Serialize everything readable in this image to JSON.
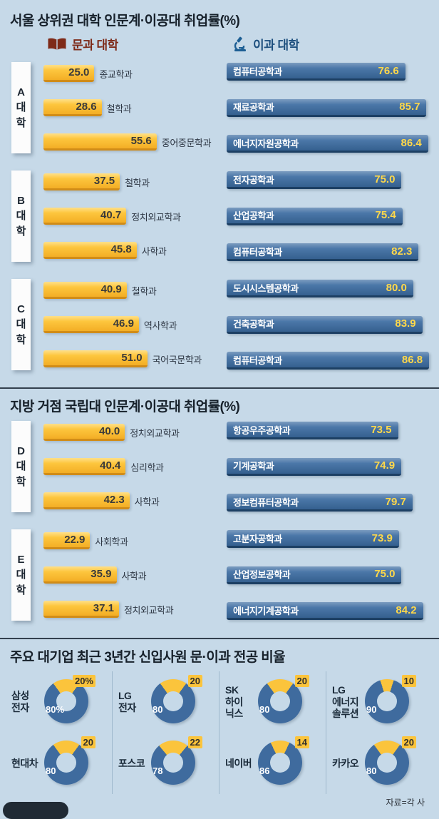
{
  "colors": {
    "background": "#c6d9e8",
    "humanities_yellow": "#fbc43c",
    "humanities_yellow_dark": "#d18c17",
    "engineering_blue": "#3f6b9e",
    "engineering_blue_dark": "#1c3f63",
    "value_on_blue": "#ffd84a",
    "legend_humanities_text": "#7e2a18",
    "legend_engineering_text": "#1d4f7e"
  },
  "chart_data": [
    {
      "type": "bar",
      "title": "서울 상위권 대학 인문계·이공대 취업률(%)",
      "legend": [
        "문과 대학",
        "이과 대학"
      ],
      "humanities_xmax": 90,
      "engineering_xmax": 88,
      "groups": [
        {
          "university": "A 대학",
          "humanities": [
            {
              "dept": "종교학과",
              "value": 25.0
            },
            {
              "dept": "철학과",
              "value": 28.6
            },
            {
              "dept": "중어중문학과",
              "value": 55.6
            }
          ],
          "engineering": [
            {
              "dept": "컴퓨터공학과",
              "value": 76.6
            },
            {
              "dept": "재료공학과",
              "value": 85.7
            },
            {
              "dept": "에너지자원공학과",
              "value": 86.4
            }
          ]
        },
        {
          "university": "B 대학",
          "humanities": [
            {
              "dept": "철학과",
              "value": 37.5
            },
            {
              "dept": "정치외교학과",
              "value": 40.7
            },
            {
              "dept": "사학과",
              "value": 45.8
            }
          ],
          "engineering": [
            {
              "dept": "전자공학과",
              "value": 75.0
            },
            {
              "dept": "산업공학과",
              "value": 75.4
            },
            {
              "dept": "컴퓨터공학과",
              "value": 82.3
            }
          ]
        },
        {
          "university": "C 대학",
          "humanities": [
            {
              "dept": "철학과",
              "value": 40.9
            },
            {
              "dept": "역사학과",
              "value": 46.9
            },
            {
              "dept": "국어국문학과",
              "value": 51.0
            }
          ],
          "engineering": [
            {
              "dept": "도시시스템공학과",
              "value": 80.0
            },
            {
              "dept": "건축공학과",
              "value": 83.9
            },
            {
              "dept": "컴퓨터공학과",
              "value": 86.8
            }
          ]
        }
      ]
    },
    {
      "type": "bar",
      "title": "지방 거점 국립대 인문계·이공대 취업률(%)",
      "humanities_xmax": 90,
      "engineering_xmax": 88,
      "groups": [
        {
          "university": "D 대학",
          "humanities": [
            {
              "dept": "정치외교학과",
              "value": 40.0
            },
            {
              "dept": "심리학과",
              "value": 40.4
            },
            {
              "dept": "사학과",
              "value": 42.3
            }
          ],
          "engineering": [
            {
              "dept": "항공우주공학과",
              "value": 73.5
            },
            {
              "dept": "기계공학과",
              "value": 74.9
            },
            {
              "dept": "정보컴퓨터공학과",
              "value": 79.7
            }
          ]
        },
        {
          "university": "E 대학",
          "humanities": [
            {
              "dept": "사회학과",
              "value": 22.9
            },
            {
              "dept": "사학과",
              "value": 35.9
            },
            {
              "dept": "정치외교학과",
              "value": 37.1
            }
          ],
          "engineering": [
            {
              "dept": "고분자공학과",
              "value": 73.9
            },
            {
              "dept": "산업정보공학과",
              "value": 75.0
            },
            {
              "dept": "에너지기계공학과",
              "value": 84.2
            }
          ]
        }
      ]
    },
    {
      "type": "pie",
      "title": "주요 대기업 최근 3년간 신입사원 문·이과 전공 비율",
      "source": "자료=각 사",
      "companies": [
        {
          "name": "삼성전자",
          "name_lines": [
            "삼성",
            "전자"
          ],
          "humanities_pct": 20,
          "science_pct": 80,
          "humanities_label": "20%",
          "science_label": "80%"
        },
        {
          "name": "LG전자",
          "name_lines": [
            "LG",
            "전자"
          ],
          "humanities_pct": 20,
          "science_pct": 80,
          "humanities_label": "20",
          "science_label": "80"
        },
        {
          "name": "SK하이닉스",
          "name_lines": [
            "SK",
            "하이",
            "닉스"
          ],
          "humanities_pct": 20,
          "science_pct": 80,
          "humanities_label": "20",
          "science_label": "80"
        },
        {
          "name": "LG에너지솔루션",
          "name_lines": [
            "LG",
            "에너지",
            "솔루션"
          ],
          "humanities_pct": 10,
          "science_pct": 90,
          "humanities_label": "10",
          "science_label": "90"
        },
        {
          "name": "현대차",
          "name_lines": [
            "현대차"
          ],
          "humanities_pct": 20,
          "science_pct": 80,
          "humanities_label": "20",
          "science_label": "80"
        },
        {
          "name": "포스코",
          "name_lines": [
            "포스코"
          ],
          "humanities_pct": 22,
          "science_pct": 78,
          "humanities_label": "22",
          "science_label": "78"
        },
        {
          "name": "네이버",
          "name_lines": [
            "네이버"
          ],
          "humanities_pct": 14,
          "science_pct": 86,
          "humanities_label": "14",
          "science_label": "86"
        },
        {
          "name": "카카오",
          "name_lines": [
            "카카오"
          ],
          "humanities_pct": 20,
          "science_pct": 80,
          "humanities_label": "20",
          "science_label": "80"
        }
      ]
    }
  ]
}
